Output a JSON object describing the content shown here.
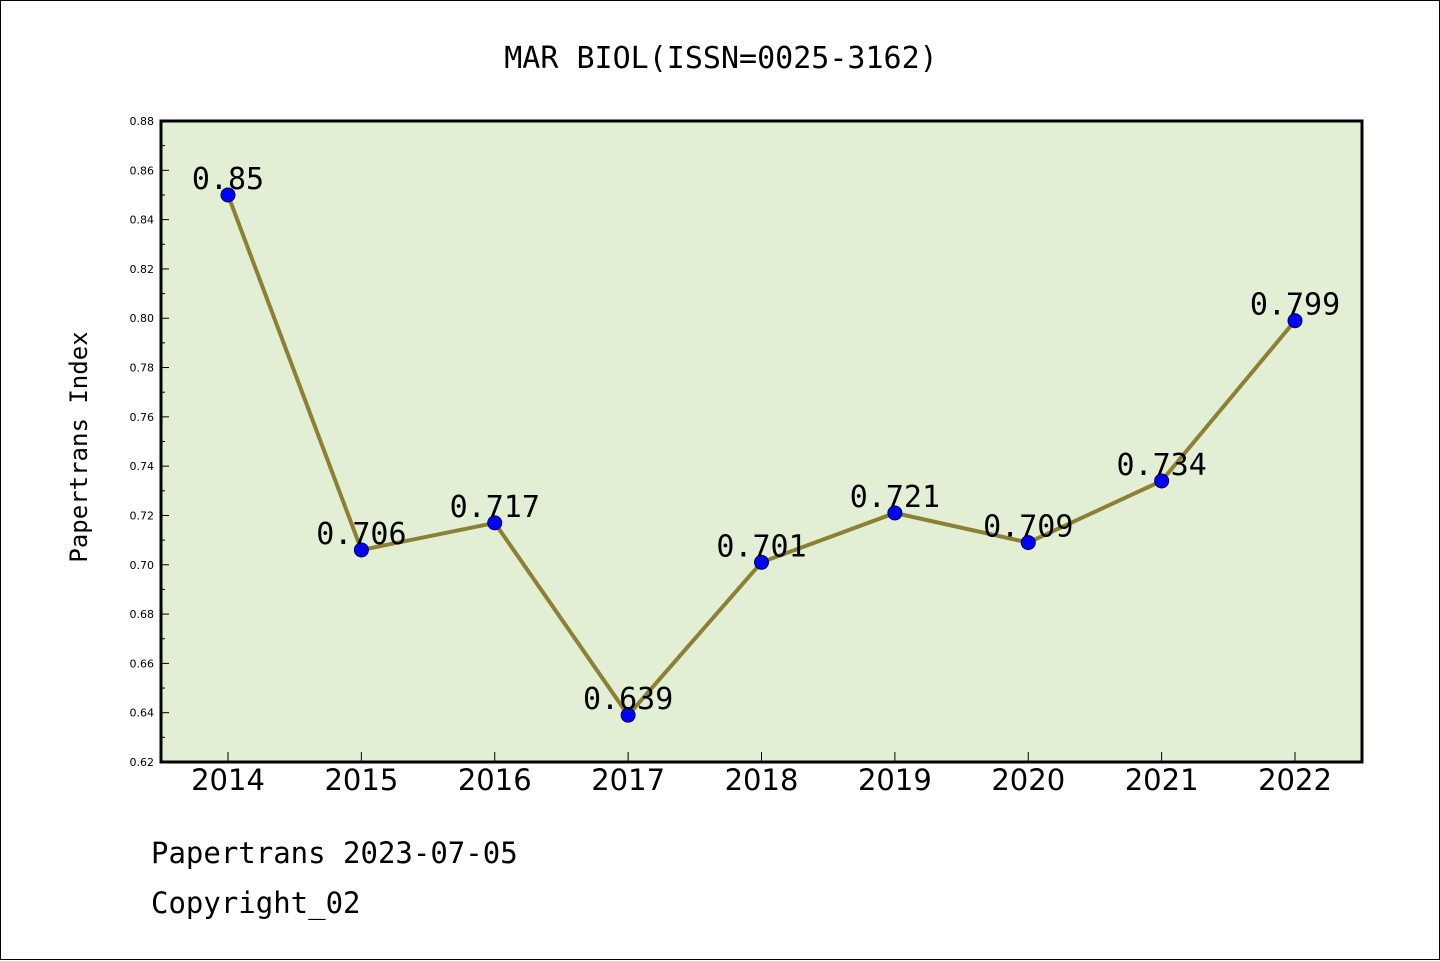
{
  "chart_data": {
    "type": "line",
    "title": "MAR BIOL(ISSN=0025-3162)",
    "xlabel": "",
    "ylabel": "Papertrans Index",
    "categories": [
      "2014",
      "2015",
      "2016",
      "2017",
      "2018",
      "2019",
      "2020",
      "2021",
      "2022"
    ],
    "values": [
      0.85,
      0.706,
      0.717,
      0.639,
      0.701,
      0.721,
      0.709,
      0.734,
      0.799
    ],
    "data_labels": [
      "0.85",
      "0.706",
      "0.717",
      "0.639",
      "0.701",
      "0.721",
      "0.709",
      "0.734",
      "0.799"
    ],
    "ylim": [
      0.62,
      0.88
    ],
    "yticks": [
      "0.62",
      "0.64",
      "0.66",
      "0.68",
      "0.70",
      "0.72",
      "0.74",
      "0.76",
      "0.78",
      "0.80",
      "0.82",
      "0.84",
      "0.86",
      "0.88"
    ],
    "grid": false,
    "legend": "none",
    "colors": {
      "plot_background": "#e2efd5",
      "line": "#8c8034",
      "marker": "#0000ff"
    }
  },
  "footer": {
    "source": "Papertrans 2023-07-05",
    "copyright": "Copyright_02"
  }
}
